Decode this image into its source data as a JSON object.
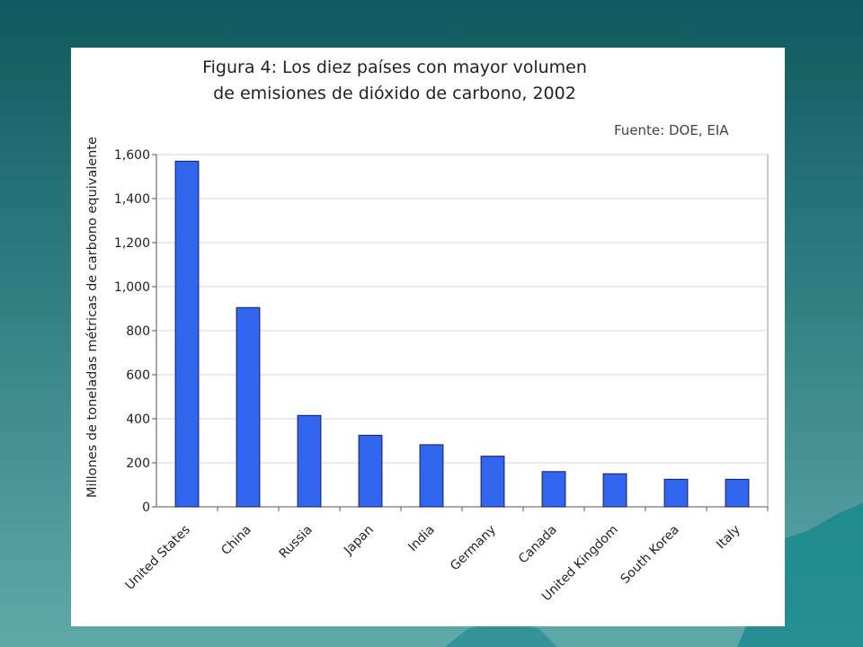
{
  "chart_data": {
    "type": "bar",
    "title_lines": [
      "Figura 4: Los diez países con mayor volumen",
      "de emisiones de dióxido de carbono, 2002"
    ],
    "source": "Fuente: DOE, EIA",
    "ylabel": "Millones de toneladas métricas de carbono equivalente",
    "xlabel": "",
    "categories": [
      "United States",
      "China",
      "Russia",
      "Japan",
      "India",
      "Germany",
      "Canada",
      "United Kingdom",
      "South Korea",
      "Italy"
    ],
    "values": [
      1570,
      905,
      415,
      325,
      282,
      230,
      160,
      150,
      125,
      125
    ],
    "ylim": [
      0,
      1600
    ],
    "yticks": [
      0,
      200,
      400,
      600,
      800,
      1000,
      1200,
      1400,
      1600
    ],
    "ytick_labels": [
      "0",
      "200",
      "400",
      "600",
      "800",
      "1,000",
      "1,200",
      "1,400",
      "1,600"
    ],
    "grid": true,
    "bar_color": "#3366ee"
  }
}
